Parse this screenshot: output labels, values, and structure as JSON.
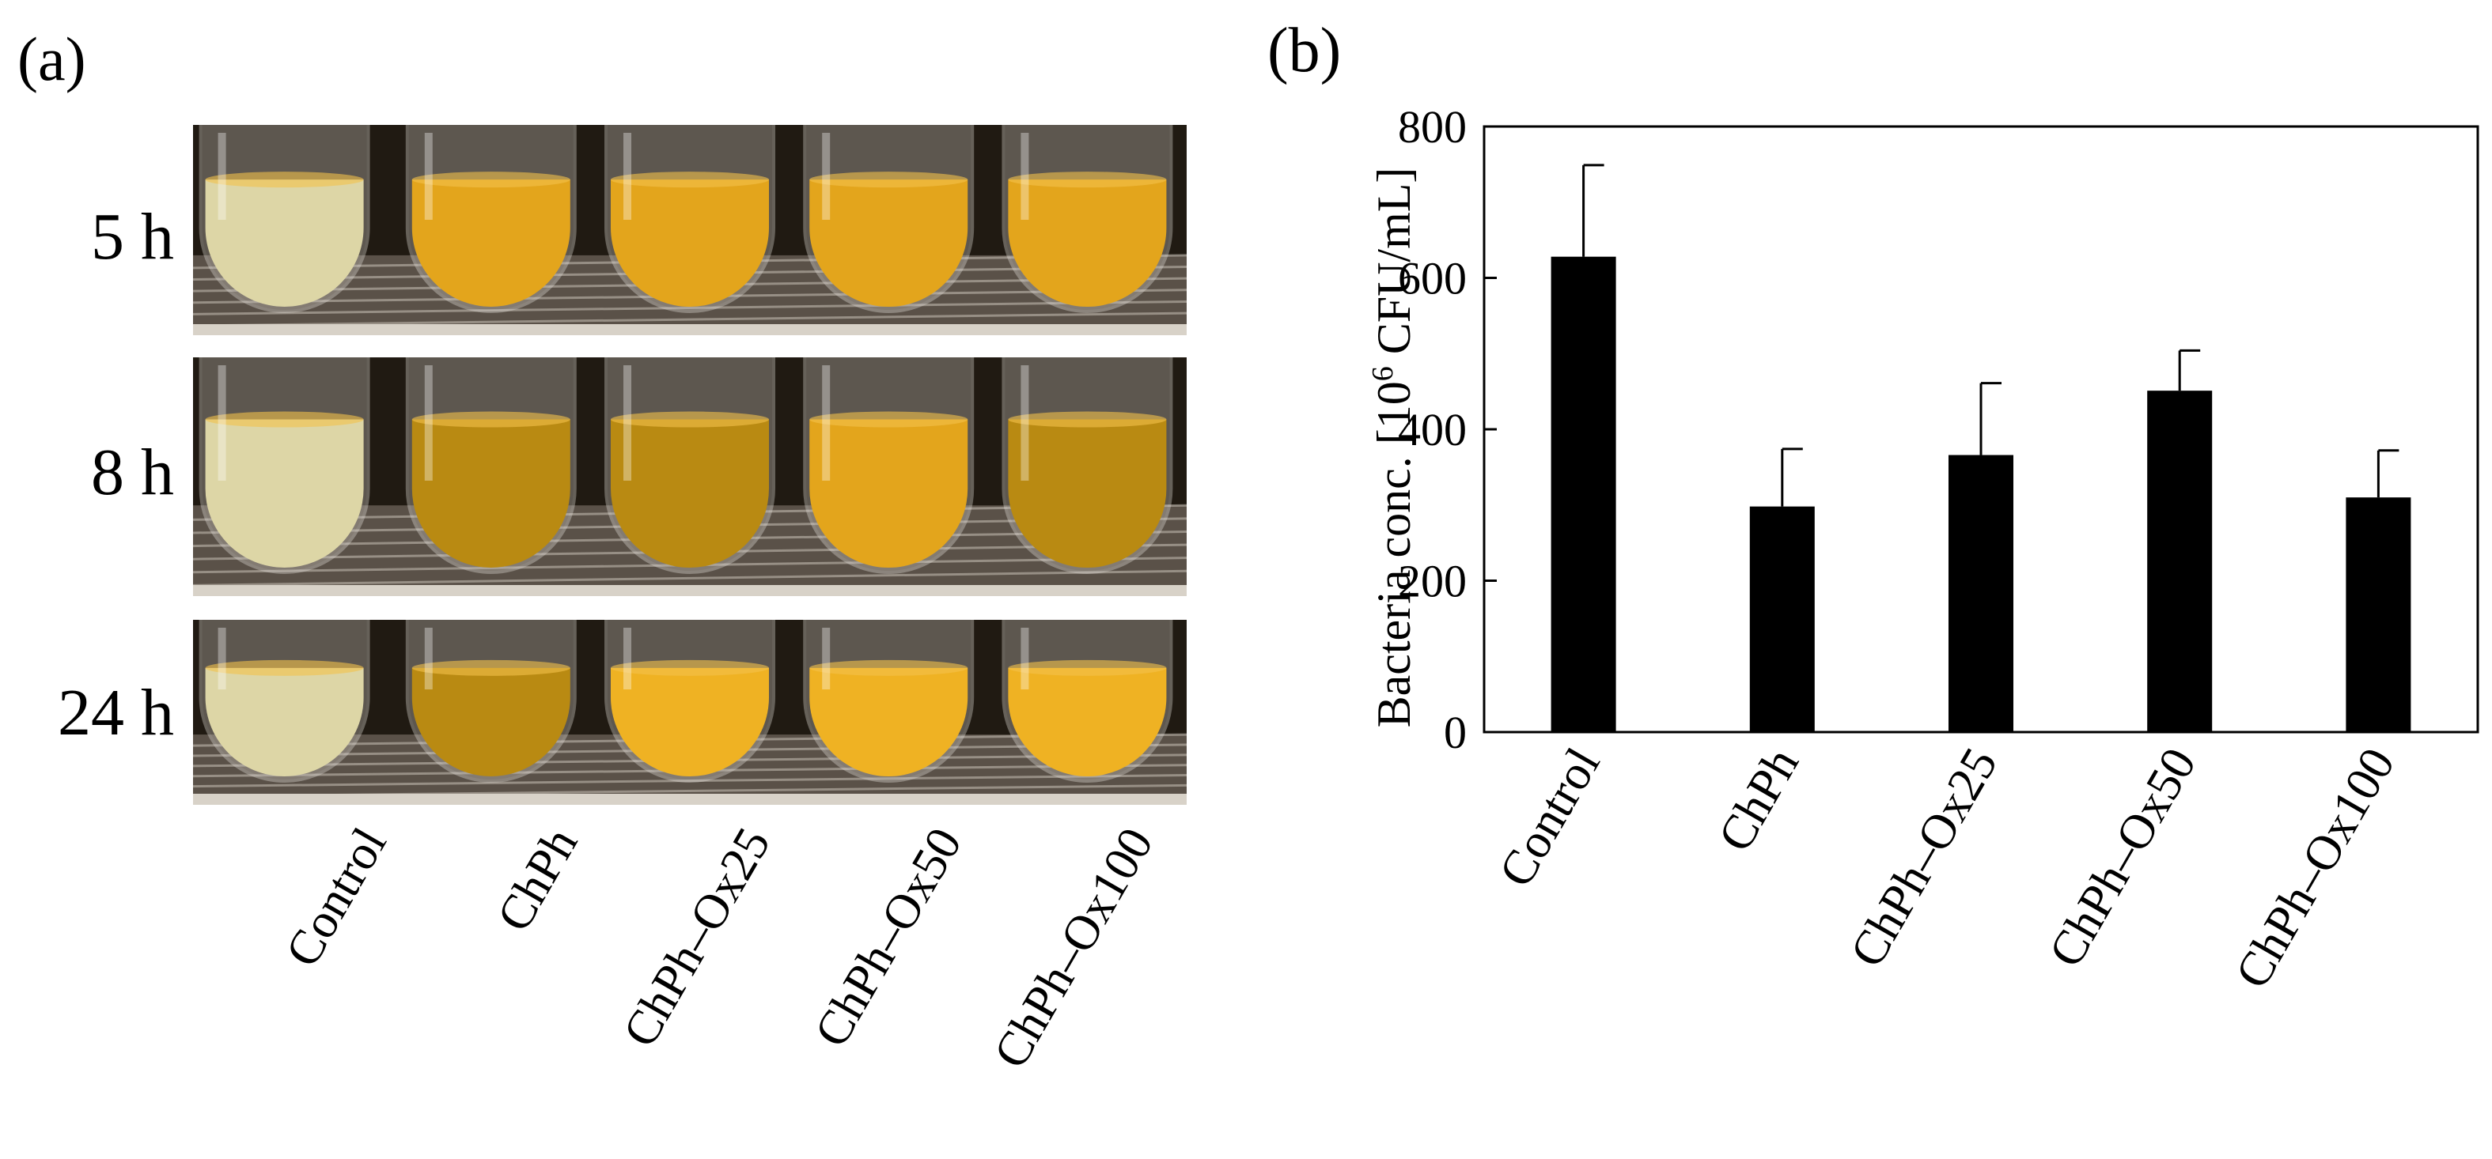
{
  "panel_a": {
    "label": "(a)",
    "time_points": [
      "5 h",
      "8 h",
      "24 h"
    ],
    "samples": [
      "Control",
      "ChPh",
      "ChPh–Ox25",
      "ChPh–Ox50",
      "ChPh–Ox100"
    ],
    "colors": {
      "control_liquid": "#ddd6a6",
      "sample_liquid": "#e3a51c",
      "turbid_liquid": "#efb223",
      "dark_liquid": "#b98a12",
      "background": "#201a12"
    }
  },
  "chart_data": {
    "panel_label": "(b)",
    "type": "bar",
    "title": "",
    "xlabel": "",
    "ylabel": "Bacteria conc. [10",
    "ylabel_sup": "6",
    "ylabel_tail": " CFU/mL]",
    "categories": [
      "Control",
      "ChPh",
      "ChPh–Ox25",
      "ChPh–Ox50",
      "ChPh–Ox100"
    ],
    "values": [
      628,
      298,
      366,
      451,
      310
    ],
    "error_upper": [
      749,
      374,
      461,
      504,
      372
    ],
    "ylim": [
      0,
      800
    ],
    "yticks": [
      "0",
      "200",
      "400",
      "600",
      "800"
    ],
    "bar_color": "#000000",
    "grid": false
  }
}
